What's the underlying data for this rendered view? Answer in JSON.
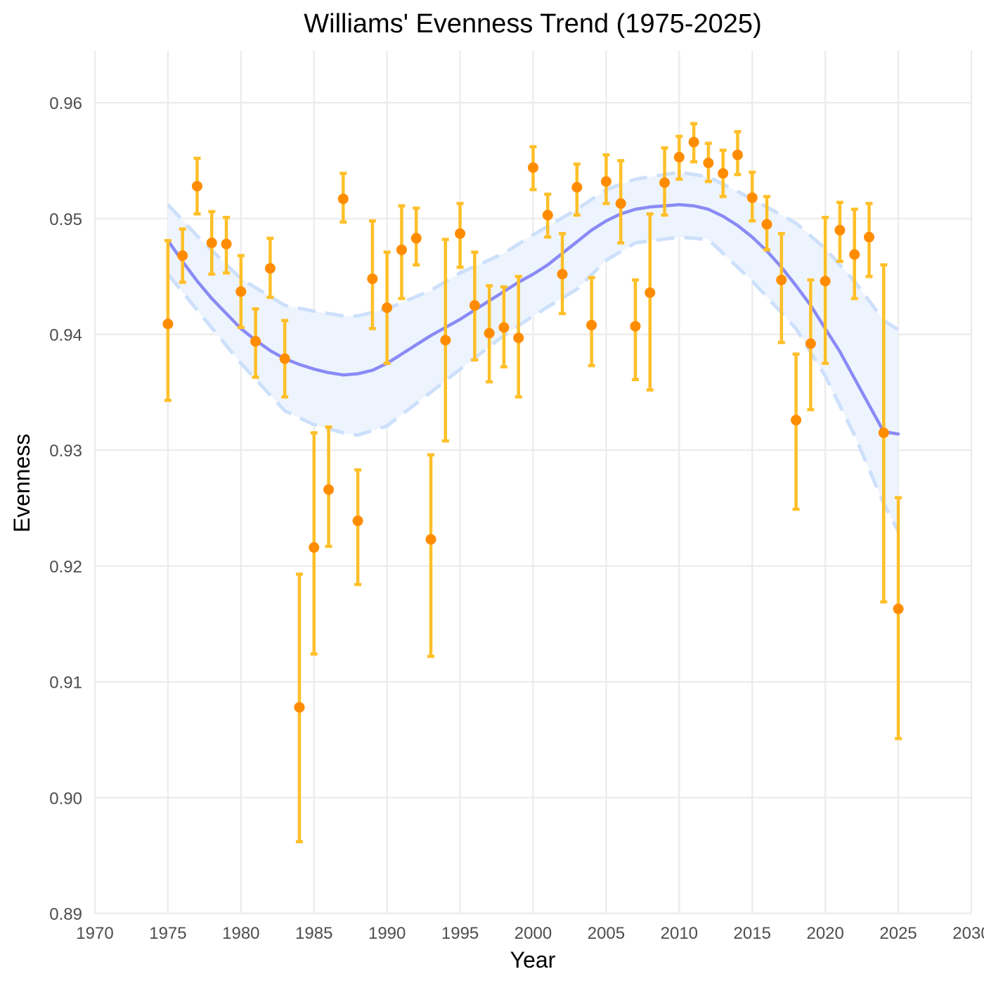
{
  "chart_data": {
    "type": "scatter",
    "title": "Williams' Evenness Trend (1975-2025)",
    "xlabel": "Year",
    "ylabel": "Evenness",
    "xlim": [
      1970,
      2030
    ],
    "ylim": [
      0.89,
      0.9645
    ],
    "x_ticks": [
      1970,
      1975,
      1980,
      1985,
      1990,
      1995,
      2000,
      2005,
      2010,
      2015,
      2020,
      2025,
      2030
    ],
    "x_tick_labels": [
      "1970",
      "1975",
      "1980",
      "1985",
      "1990",
      "1995",
      "2000",
      "2005",
      "2010",
      "2015",
      "2020",
      "2025",
      "2030"
    ],
    "y_ticks": [
      0.89,
      0.9,
      0.91,
      0.92,
      0.93,
      0.94,
      0.95,
      0.96
    ],
    "y_tick_labels": [
      "0.89",
      "0.90",
      "0.91",
      "0.92",
      "0.93",
      "0.94",
      "0.95",
      "0.96"
    ],
    "grid": true,
    "legend": "none",
    "colors": {
      "points": "#ff8c00",
      "error_bars": "#ffbf28",
      "trend": "#8a8af5",
      "confidence_band": "#edf4fd",
      "confidence_bounds": "#cde0fb"
    },
    "series": [
      {
        "type": "points_with_error_bars",
        "x": [
          1975,
          1976,
          1977,
          1978,
          1979,
          1980,
          1981,
          1982,
          1983,
          1984,
          1985,
          1986,
          1987,
          1988,
          1989,
          1990,
          1991,
          1992,
          1993,
          1994,
          1995,
          1996,
          1997,
          1998,
          1999,
          2000,
          2001,
          2002,
          2003,
          2004,
          2005,
          2006,
          2007,
          2008,
          2009,
          2010,
          2011,
          2012,
          2013,
          2014,
          2015,
          2016,
          2017,
          2018,
          2019,
          2020,
          2021,
          2022,
          2023,
          2024,
          2025
        ],
        "y": [
          0.9409,
          0.9468,
          0.9528,
          0.9479,
          0.9478,
          0.9437,
          0.9394,
          0.9457,
          0.9379,
          0.9078,
          0.9216,
          0.9266,
          0.9517,
          0.9239,
          0.9448,
          0.9423,
          0.9473,
          0.9483,
          0.9223,
          0.9395,
          0.9487,
          0.9425,
          0.9401,
          0.9406,
          0.9397,
          0.9544,
          0.9503,
          0.9452,
          0.9527,
          0.9408,
          0.9532,
          0.9513,
          0.9407,
          0.9436,
          0.9531,
          0.9553,
          0.9566,
          0.9548,
          0.9539,
          0.9555,
          0.9518,
          0.9495,
          0.9447,
          0.9326,
          0.9392,
          0.9446,
          0.949,
          0.9469,
          0.9484,
          0.9315,
          0.9163
        ],
        "y_low": [
          0.9343,
          0.9445,
          0.9504,
          0.9452,
          0.9453,
          0.9406,
          0.9363,
          0.9432,
          0.9346,
          0.8962,
          0.9124,
          0.9217,
          0.9497,
          0.9184,
          0.9405,
          0.9375,
          0.9431,
          0.946,
          0.9122,
          0.9308,
          0.9458,
          0.9378,
          0.9359,
          0.9372,
          0.9346,
          0.9525,
          0.9484,
          0.9418,
          0.9503,
          0.9373,
          0.9513,
          0.9479,
          0.9361,
          0.9352,
          0.9503,
          0.9534,
          0.9549,
          0.9532,
          0.9519,
          0.9538,
          0.9498,
          0.9473,
          0.9393,
          0.9249,
          0.9335,
          0.9375,
          0.9463,
          0.9431,
          0.945,
          0.9169,
          0.9051
        ],
        "y_high": [
          0.9481,
          0.9491,
          0.9552,
          0.9506,
          0.9501,
          0.9468,
          0.9422,
          0.9483,
          0.9412,
          0.9193,
          0.9315,
          0.932,
          0.9539,
          0.9283,
          0.9498,
          0.9471,
          0.9511,
          0.9509,
          0.9296,
          0.9482,
          0.9513,
          0.9471,
          0.9442,
          0.9441,
          0.945,
          0.9562,
          0.9521,
          0.9487,
          0.9547,
          0.9449,
          0.9555,
          0.955,
          0.9447,
          0.9504,
          0.9561,
          0.9571,
          0.9582,
          0.9565,
          0.9559,
          0.9575,
          0.954,
          0.9519,
          0.9487,
          0.9383,
          0.9447,
          0.9501,
          0.9514,
          0.9508,
          0.9513,
          0.946,
          0.9259
        ]
      },
      {
        "type": "smooth_line",
        "x": [
          1975,
          1976,
          1977,
          1978,
          1979,
          1980,
          1981,
          1982,
          1983,
          1984,
          1985,
          1986,
          1987,
          1988,
          1989,
          1990,
          1991,
          1992,
          1993,
          1994,
          1995,
          1996,
          1997,
          1998,
          1999,
          2000,
          2001,
          2002,
          2003,
          2004,
          2005,
          2006,
          2007,
          2008,
          2009,
          2010,
          2011,
          2012,
          2013,
          2014,
          2015,
          2016,
          2017,
          2018,
          2019,
          2020,
          2021,
          2022,
          2023,
          2024,
          2025
        ],
        "y": [
          0.9481,
          0.9463,
          0.9446,
          0.9431,
          0.9418,
          0.9405,
          0.9395,
          0.9386,
          0.9379,
          0.9374,
          0.937,
          0.9367,
          0.9365,
          0.9366,
          0.9369,
          0.9375,
          0.9383,
          0.9391,
          0.9399,
          0.9406,
          0.9413,
          0.9421,
          0.9429,
          0.9437,
          0.9445,
          0.9452,
          0.946,
          0.947,
          0.948,
          0.949,
          0.9498,
          0.9504,
          0.9508,
          0.951,
          0.9511,
          0.9512,
          0.9511,
          0.9508,
          0.9502,
          0.9494,
          0.9484,
          0.9472,
          0.9458,
          0.9442,
          0.9425,
          0.9405,
          0.9385,
          0.9362,
          0.9339,
          0.9316,
          0.9314
        ]
      },
      {
        "type": "confidence_band",
        "x": [
          1975,
          1977,
          1980,
          1983,
          1985,
          1987,
          1988,
          1990,
          1993,
          1995,
          1998,
          2000,
          2003,
          2005,
          2007,
          2010,
          2012,
          2015,
          2018,
          2020,
          2022,
          2024,
          2025
        ],
        "upper": [
          0.9512,
          0.9485,
          0.9448,
          0.9425,
          0.942,
          0.9416,
          0.9416,
          0.9422,
          0.9438,
          0.9453,
          0.947,
          0.9486,
          0.9508,
          0.9525,
          0.9534,
          0.954,
          0.9536,
          0.9517,
          0.9496,
          0.9474,
          0.9446,
          0.9412,
          0.9404
        ],
        "lower": [
          0.9452,
          0.9421,
          0.9375,
          0.9334,
          0.9322,
          0.9315,
          0.9313,
          0.9321,
          0.935,
          0.937,
          0.9399,
          0.9416,
          0.9439,
          0.9464,
          0.9479,
          0.9484,
          0.9482,
          0.9446,
          0.9405,
          0.9364,
          0.9313,
          0.9254,
          0.923
        ]
      }
    ]
  }
}
